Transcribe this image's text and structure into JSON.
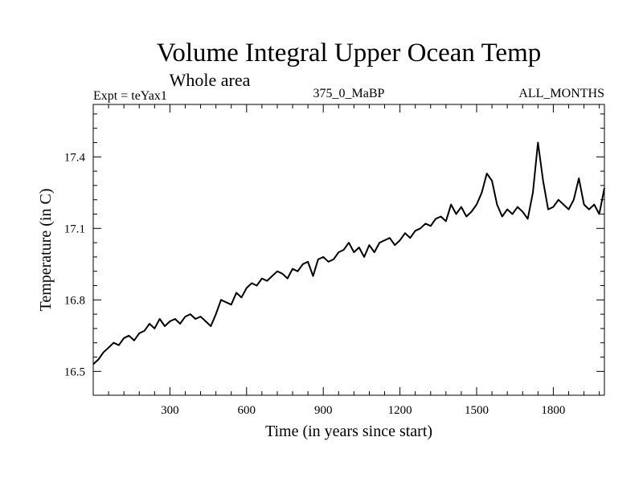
{
  "chart_data": {
    "type": "line",
    "title": "Volume Integral Upper Ocean Temp",
    "subtitle": "Whole area",
    "experiment": "Expt = teYax1",
    "run_name": "375_0_MaBP",
    "months": "ALL_MONTHS",
    "xlabel": "Time (in years since start)",
    "ylabel": "Temperature (in C)",
    "xlim": [
      0,
      2000
    ],
    "ylim": [
      16.4,
      17.62
    ],
    "x_ticks": [
      300,
      600,
      900,
      1200,
      1500,
      1800
    ],
    "x_tick_labels": [
      "300",
      "600",
      "900",
      "1200",
      "1500",
      "1800"
    ],
    "y_ticks": [
      16.5,
      16.8,
      17.1,
      17.4
    ],
    "y_tick_labels": [
      "16.5",
      "16.8",
      "17.1",
      "17.4"
    ],
    "grid": false,
    "series": [
      {
        "name": "Temperature",
        "color": "#000000",
        "x": [
          0,
          20,
          40,
          60,
          80,
          100,
          120,
          140,
          160,
          180,
          200,
          220,
          240,
          260,
          280,
          300,
          320,
          340,
          360,
          380,
          400,
          420,
          440,
          460,
          480,
          500,
          520,
          540,
          560,
          580,
          600,
          620,
          640,
          660,
          680,
          700,
          720,
          740,
          760,
          780,
          800,
          820,
          840,
          860,
          880,
          900,
          920,
          940,
          960,
          980,
          1000,
          1020,
          1040,
          1060,
          1080,
          1100,
          1120,
          1140,
          1160,
          1180,
          1200,
          1220,
          1240,
          1260,
          1280,
          1300,
          1320,
          1340,
          1360,
          1380,
          1400,
          1420,
          1440,
          1460,
          1480,
          1500,
          1520,
          1540,
          1560,
          1580,
          1600,
          1620,
          1640,
          1660,
          1680,
          1700,
          1720,
          1740,
          1760,
          1780,
          1800,
          1820,
          1840,
          1860,
          1880,
          1900,
          1920,
          1940,
          1960,
          1980,
          2000
        ],
        "values": [
          16.53,
          16.55,
          16.58,
          16.6,
          16.62,
          16.61,
          16.64,
          16.65,
          16.63,
          16.66,
          16.67,
          16.7,
          16.68,
          16.72,
          16.69,
          16.71,
          16.72,
          16.7,
          16.73,
          16.74,
          16.72,
          16.73,
          16.71,
          16.69,
          16.74,
          16.8,
          16.79,
          16.78,
          16.83,
          16.81,
          16.85,
          16.87,
          16.86,
          16.89,
          16.88,
          16.9,
          16.92,
          16.91,
          16.89,
          16.93,
          16.92,
          16.95,
          16.96,
          16.9,
          16.97,
          16.98,
          16.96,
          16.97,
          17.0,
          17.01,
          17.04,
          17.0,
          17.02,
          16.98,
          17.03,
          17.0,
          17.04,
          17.05,
          17.06,
          17.03,
          17.05,
          17.08,
          17.06,
          17.09,
          17.1,
          17.12,
          17.11,
          17.14,
          17.15,
          17.13,
          17.2,
          17.16,
          17.19,
          17.15,
          17.17,
          17.2,
          17.25,
          17.33,
          17.3,
          17.2,
          17.15,
          17.18,
          17.16,
          17.19,
          17.17,
          17.14,
          17.25,
          17.46,
          17.3,
          17.18,
          17.19,
          17.22,
          17.2,
          17.18,
          17.22,
          17.31,
          17.2,
          17.18,
          17.2,
          17.16,
          17.27
        ]
      }
    ]
  }
}
